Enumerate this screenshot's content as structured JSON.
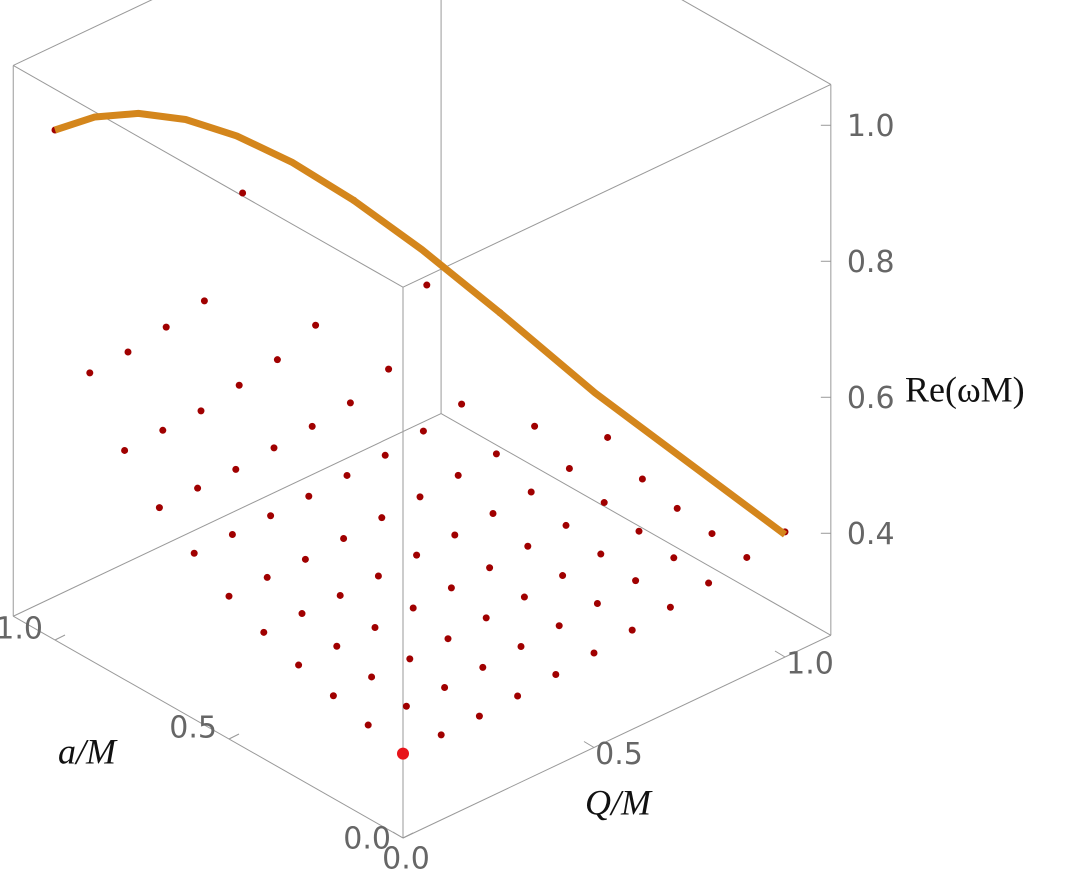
{
  "chart_data": {
    "type": "scatter3d",
    "x_label": "Q/M",
    "y_label": "a/M",
    "z_label": "Re(ωM)",
    "xlim": [
      0,
      1.12
    ],
    "ylim": [
      0,
      1.12
    ],
    "zlim": [
      0.25,
      1.06
    ],
    "xticks": [
      {
        "value": 0,
        "label": "0.0"
      },
      0.5,
      {
        "value": 1,
        "label": "1.0"
      }
    ],
    "yticks": [
      {
        "value": 0,
        "label": "0.0"
      },
      0.5,
      {
        "value": 1,
        "label": "1.0"
      }
    ],
    "zticks": [
      0.4,
      0.6,
      0.8,
      {
        "value": 1,
        "label": "1.0"
      }
    ],
    "x": [
      0,
      0.1,
      0.2,
      0.3,
      0.4,
      0.5,
      0.6,
      0.7,
      0.8,
      0.9,
      1
    ],
    "y": [
      0,
      0.1,
      0.2,
      0.3,
      0.4,
      0.5,
      0.6,
      0.7,
      0.8,
      0.9,
      1
    ],
    "surface": {
      "color": "#a00000",
      "z": [
        [
          0.374,
          0.387,
          0.401,
          0.417,
          0.436,
          0.46,
          0.494,
          0.532,
          0.587,
          0.672,
          1
        ],
        [
          0.375,
          0.388,
          0.402,
          0.418,
          0.437,
          0.461,
          0.495,
          0.534,
          0.59,
          0.676,
          null
        ],
        [
          0.376,
          0.389,
          0.402,
          0.419,
          0.437,
          0.461,
          0.496,
          0.535,
          0.592,
          0.686,
          null
        ],
        [
          0.379,
          0.392,
          0.405,
          0.421,
          0.439,
          0.465,
          0.498,
          0.54,
          0.603,
          0.698,
          null
        ],
        [
          0.384,
          0.396,
          0.409,
          0.424,
          0.443,
          0.469,
          0.502,
          0.545,
          0.614,
          0.83,
          null
        ],
        [
          0.389,
          0.4,
          0.413,
          0.427,
          0.446,
          0.473,
          0.505,
          0.553,
          0.638,
          null,
          null
        ],
        [
          0.396,
          0.406,
          0.418,
          0.432,
          0.451,
          0.478,
          0.514,
          0.576,
          0.795,
          null,
          null
        ],
        [
          0.403,
          0.413,
          0.423,
          0.436,
          0.456,
          0.483,
          0.527,
          0.673,
          null,
          null,
          null
        ],
        [
          0.412,
          0.42,
          0.43,
          0.443,
          0.464,
          0.497,
          0.635,
          null,
          null,
          null,
          null
        ],
        [
          0.423,
          0.429,
          0.437,
          0.451,
          0.483,
          null,
          null,
          null,
          null,
          null,
          null
        ],
        [
          0.434,
          null,
          null,
          null,
          null,
          null,
          null,
          null,
          null,
          null,
          null
        ]
      ]
    },
    "boundary": {
      "color": "#d4861c",
      "x": [
        0,
        0.1,
        0.2,
        0.3,
        0.4,
        0.5,
        0.6,
        0.7,
        0.8,
        0.9,
        1
      ],
      "y": [
        1,
        0.995,
        0.98,
        0.954,
        0.917,
        0.866,
        0.8,
        0.714,
        0.6,
        0.436,
        0
      ],
      "z": [
        1,
        0.994,
        0.977,
        0.949,
        0.909,
        0.858,
        0.795,
        0.721,
        0.635,
        0.538,
        0.43
      ]
    },
    "point": {
      "color": "#e8141a",
      "x": 0,
      "y": 0,
      "z": 0.374
    }
  }
}
